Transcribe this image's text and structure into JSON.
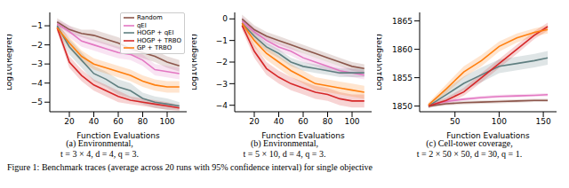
{
  "caption": "Figure 1: Benchmark traces (average across 20 runs with 95% confidence interval) for single objective",
  "chart_data": [
    {
      "type": "line",
      "title": "(a) Environmental,",
      "subtitle": "t = 3 × 4, d = 4, q = 3.",
      "x_label": "Function Evaluations",
      "y_label": "Log10(Regret)",
      "grid": false,
      "legend": "upper right",
      "xlim": [
        4,
        116
      ],
      "xticks": [
        20,
        40,
        60,
        80,
        100
      ],
      "ylim": [
        -5.5,
        -0.3
      ],
      "yticks": [
        {
          "value": -5,
          "label": "−5"
        },
        {
          "value": -4,
          "label": "−4"
        },
        {
          "value": -3,
          "label": "−3"
        },
        {
          "value": -2,
          "label": "−2"
        },
        {
          "value": -1,
          "label": "−1"
        }
      ],
      "x": [
        10,
        20,
        30,
        40,
        50,
        60,
        70,
        80,
        90,
        100,
        110
      ],
      "series": [
        {
          "name": "Random",
          "color": "#8c564b",
          "values": [
            -0.8,
            -1.2,
            -1.4,
            -1.5,
            -1.7,
            -1.9,
            -2.2,
            -2.4,
            -2.6,
            -2.9,
            -3.1
          ],
          "lower": [
            -1.0,
            -1.4,
            -1.6,
            -1.8,
            -2.0,
            -2.2,
            -2.5,
            -2.7,
            -2.9,
            -3.2,
            -3.4
          ],
          "upper": [
            -0.6,
            -1.0,
            -1.2,
            -1.2,
            -1.4,
            -1.6,
            -1.9,
            -2.1,
            -2.3,
            -2.6,
            -2.8
          ]
        },
        {
          "name": "qEI",
          "color": "#e377c2",
          "values": [
            -0.9,
            -1.3,
            -1.8,
            -2.0,
            -2.2,
            -2.4,
            -2.5,
            -2.8,
            -3.3,
            -3.4,
            -3.5
          ],
          "lower": [
            -1.1,
            -1.6,
            -2.1,
            -2.3,
            -2.5,
            -2.7,
            -2.8,
            -3.1,
            -3.6,
            -3.7,
            -3.8
          ],
          "upper": [
            -0.7,
            -1.0,
            -1.5,
            -1.7,
            -1.9,
            -2.1,
            -2.2,
            -2.5,
            -3.0,
            -3.1,
            -3.2
          ]
        },
        {
          "name": "HOGP + qEI",
          "color": "#5f7f80",
          "values": [
            -1.0,
            -2.1,
            -2.8,
            -3.5,
            -3.8,
            -4.2,
            -4.4,
            -4.8,
            -5.0,
            -5.1,
            -5.2
          ],
          "lower": [
            -1.2,
            -2.5,
            -3.2,
            -3.9,
            -4.2,
            -4.6,
            -4.8,
            -5.1,
            -5.3,
            -5.4,
            -5.4
          ],
          "upper": [
            -0.8,
            -1.7,
            -2.4,
            -3.1,
            -3.4,
            -3.8,
            -4.0,
            -4.5,
            -4.7,
            -4.8,
            -5.0
          ]
        },
        {
          "name": "HOGP + TRBO",
          "color": "#d62728",
          "values": [
            -1.1,
            -2.9,
            -3.6,
            -4.1,
            -4.4,
            -4.7,
            -4.9,
            -5.0,
            -5.1,
            -5.2,
            -5.3
          ],
          "lower": [
            -1.3,
            -3.2,
            -3.9,
            -4.4,
            -4.7,
            -5.0,
            -5.1,
            -5.2,
            -5.3,
            -5.4,
            -5.45
          ],
          "upper": [
            -0.9,
            -2.6,
            -3.3,
            -3.8,
            -4.1,
            -4.4,
            -4.7,
            -4.8,
            -4.9,
            -5.0,
            -5.15
          ]
        },
        {
          "name": "GP + TRBO",
          "color": "#ff7f0e",
          "values": [
            -1.1,
            -1.9,
            -2.6,
            -3.0,
            -3.2,
            -3.4,
            -3.6,
            -3.9,
            -4.1,
            -4.2,
            -4.2
          ],
          "lower": [
            -1.3,
            -2.2,
            -2.9,
            -3.3,
            -3.5,
            -3.7,
            -3.9,
            -4.2,
            -4.4,
            -4.5,
            -4.5
          ],
          "upper": [
            -0.9,
            -1.6,
            -2.3,
            -2.7,
            -2.9,
            -3.1,
            -3.3,
            -3.6,
            -3.8,
            -3.9,
            -3.9
          ]
        }
      ]
    },
    {
      "type": "line",
      "title": "(b) Environmental,",
      "subtitle": "t = 5 × 10, d = 4, q = 3.",
      "x_label": "Function Evaluations",
      "y_label": "Log10(Regret)",
      "grid": false,
      "xlim": [
        4,
        116
      ],
      "xticks": [
        20,
        40,
        60,
        80,
        100
      ],
      "ylim": [
        -4.3,
        0.3
      ],
      "yticks": [
        {
          "value": -4,
          "label": "−4"
        },
        {
          "value": -3,
          "label": "−3"
        },
        {
          "value": -2,
          "label": "−2"
        },
        {
          "value": -1,
          "label": "−1"
        },
        0
      ],
      "x": [
        10,
        20,
        30,
        40,
        50,
        60,
        70,
        80,
        90,
        100,
        110
      ],
      "series": [
        {
          "color": "#8c564b",
          "values": [
            0.0,
            -0.5,
            -0.8,
            -1.0,
            -1.2,
            -1.4,
            -1.6,
            -1.8,
            -2.0,
            -2.2,
            -2.3
          ],
          "lower": [
            -0.2,
            -0.7,
            -1.0,
            -1.2,
            -1.4,
            -1.6,
            -1.8,
            -2.0,
            -2.2,
            -2.4,
            -2.5
          ],
          "upper": [
            0.2,
            -0.3,
            -0.6,
            -0.8,
            -1.0,
            -1.2,
            -1.4,
            -1.6,
            -1.8,
            -2.0,
            -2.1
          ]
        },
        {
          "color": "#e377c2",
          "values": [
            -0.1,
            -0.6,
            -1.0,
            -1.3,
            -1.5,
            -1.8,
            -2.0,
            -2.2,
            -2.4,
            -2.5,
            -2.6
          ],
          "lower": [
            -0.3,
            -0.8,
            -1.2,
            -1.5,
            -1.7,
            -2.0,
            -2.2,
            -2.4,
            -2.6,
            -2.7,
            -2.8
          ],
          "upper": [
            0.1,
            -0.4,
            -0.8,
            -1.1,
            -1.3,
            -1.6,
            -1.8,
            -2.0,
            -2.2,
            -2.3,
            -2.4
          ]
        },
        {
          "color": "#5f7f80",
          "values": [
            -0.2,
            -0.8,
            -1.3,
            -1.6,
            -2.0,
            -2.2,
            -2.3,
            -2.4,
            -2.5,
            -2.5,
            -2.5
          ],
          "lower": [
            -0.4,
            -1.0,
            -1.5,
            -1.8,
            -2.2,
            -2.4,
            -2.5,
            -2.6,
            -2.7,
            -2.7,
            -2.7
          ],
          "upper": [
            0.0,
            -0.6,
            -1.1,
            -1.4,
            -1.8,
            -2.0,
            -2.1,
            -2.2,
            -2.3,
            -2.3,
            -2.3
          ]
        },
        {
          "color": "#d62728",
          "values": [
            -0.3,
            -1.5,
            -2.3,
            -2.7,
            -3.0,
            -3.2,
            -3.4,
            -3.5,
            -3.7,
            -3.8,
            -3.8
          ],
          "lower": [
            -0.5,
            -1.8,
            -2.6,
            -3.0,
            -3.3,
            -3.5,
            -3.7,
            -3.8,
            -4.0,
            -4.1,
            -4.1
          ],
          "upper": [
            -0.1,
            -1.2,
            -2.0,
            -2.4,
            -2.7,
            -2.9,
            -3.1,
            -3.2,
            -3.4,
            -3.5,
            -3.5
          ]
        },
        {
          "color": "#ff7f0e",
          "values": [
            -0.2,
            -1.0,
            -1.6,
            -2.0,
            -2.4,
            -2.7,
            -3.0,
            -3.1,
            -3.2,
            -3.3,
            -3.4
          ],
          "lower": [
            -0.4,
            -1.3,
            -1.9,
            -2.3,
            -2.7,
            -3.0,
            -3.3,
            -3.4,
            -3.5,
            -3.6,
            -3.7
          ],
          "upper": [
            0.0,
            -0.7,
            -1.3,
            -1.7,
            -2.1,
            -2.4,
            -2.7,
            -2.8,
            -2.9,
            -3.0,
            -3.1
          ]
        }
      ]
    },
    {
      "type": "line",
      "title": "(c) Cell-tower coverage,",
      "subtitle": "t = 2 × 50 × 50, d = 30, q = 1.",
      "x_label": "Function Evaluations",
      "y_label": "Log10(Regret)",
      "grid": false,
      "xlim": [
        10,
        165
      ],
      "xticks": [
        50,
        100,
        150
      ],
      "ylim": [
        1849,
        1866.5
      ],
      "yticks": [
        1850,
        1855,
        1860,
        1865
      ],
      "x": [
        20,
        40,
        60,
        80,
        100,
        120,
        140,
        155
      ],
      "series": [
        {
          "color": "#8c564b",
          "values": [
            1850,
            1850.4,
            1850.6,
            1850.7,
            1850.8,
            1850.9,
            1851,
            1851
          ],
          "lower": [
            1849.7,
            1850.1,
            1850.3,
            1850.4,
            1850.5,
            1850.6,
            1850.7,
            1850.7
          ],
          "upper": [
            1850.3,
            1850.7,
            1850.9,
            1851,
            1851.1,
            1851.2,
            1851.3,
            1851.3
          ]
        },
        {
          "color": "#e377c2",
          "values": [
            1850.2,
            1850.8,
            1851.2,
            1851.5,
            1851.7,
            1851.8,
            1851.9,
            1852
          ],
          "lower": [
            1849.9,
            1850.5,
            1850.9,
            1851.2,
            1851.4,
            1851.5,
            1851.6,
            1851.7
          ],
          "upper": [
            1850.5,
            1851.1,
            1851.5,
            1851.8,
            1852,
            1852.1,
            1852.2,
            1852.3
          ]
        },
        {
          "color": "#5f7f80",
          "values": [
            1850,
            1852,
            1854,
            1855.5,
            1857,
            1857.5,
            1858,
            1858.5
          ],
          "lower": [
            1849.6,
            1851,
            1852.8,
            1854.2,
            1855.8,
            1856.3,
            1856.8,
            1857.3
          ],
          "upper": [
            1850.4,
            1853,
            1855.2,
            1856.8,
            1858.2,
            1858.7,
            1859.2,
            1859.7
          ]
        },
        {
          "color": "#d62728",
          "values": [
            1850,
            1851,
            1852.5,
            1855,
            1857.5,
            1860,
            1862.5,
            1864
          ],
          "lower": [
            1849.7,
            1850.5,
            1851.8,
            1854.2,
            1856.7,
            1859.2,
            1861.8,
            1863.3
          ],
          "upper": [
            1850.3,
            1851.5,
            1853.2,
            1855.8,
            1858.3,
            1860.8,
            1863.2,
            1864.7
          ]
        },
        {
          "color": "#ff7f0e",
          "values": [
            1850.2,
            1853,
            1856,
            1858,
            1860.5,
            1862,
            1863,
            1863.5
          ],
          "lower": [
            1849.8,
            1852.2,
            1855,
            1857,
            1859.6,
            1861.2,
            1862.3,
            1862.8
          ],
          "upper": [
            1850.6,
            1853.8,
            1857,
            1859,
            1861.4,
            1862.8,
            1863.7,
            1864.2
          ]
        }
      ]
    }
  ]
}
